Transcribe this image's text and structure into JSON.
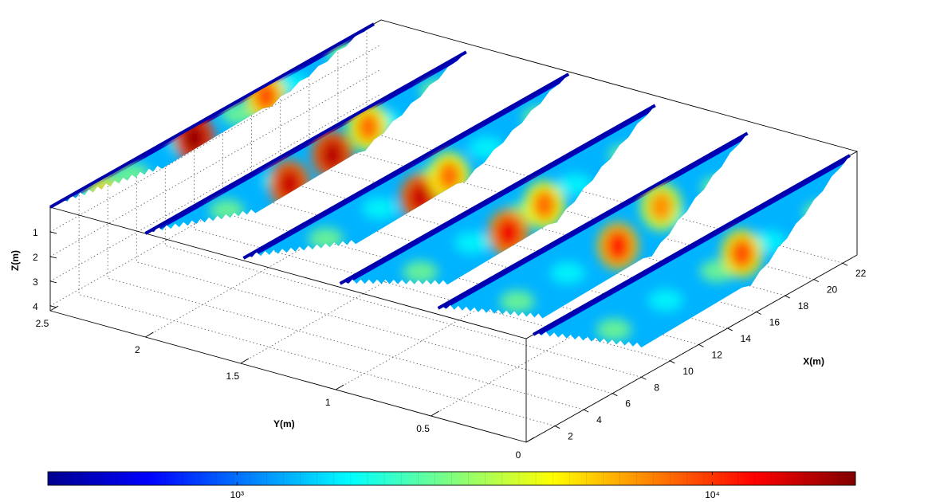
{
  "chart_data": {
    "type": "heatmap",
    "subtype": "3d-slice-plot",
    "xlabel": "X(m)",
    "ylabel": "Y(m)",
    "zlabel": "Z(m)",
    "xlim": [
      0,
      23
    ],
    "ylim": [
      0,
      2.5
    ],
    "zlim": [
      0,
      4.2
    ],
    "z_reversed": true,
    "x_ticks": [
      "2",
      "4",
      "6",
      "8",
      "10",
      "12",
      "14",
      "16",
      "18",
      "20",
      "22"
    ],
    "y_ticks": [
      "0",
      "0.5",
      "1",
      "1.5",
      "2",
      "2.5"
    ],
    "z_ticks": [
      "1",
      "2",
      "3",
      "4"
    ],
    "grid": true,
    "colormap": "jet",
    "colorbar": {
      "location": "bottom",
      "scale": "log",
      "range": [
        400,
        20000
      ],
      "ticks": [
        {
          "value": 1000,
          "label": "10³"
        },
        {
          "value": 10000,
          "label": "10⁴"
        }
      ]
    },
    "profiles": [
      {
        "y": 2.5,
        "x_start": 0.0,
        "x_end": 22.5,
        "max_depth_m": 1.0
      },
      {
        "y": 2.0,
        "x_start": 0.0,
        "x_end": 22.3,
        "max_depth_m": 1.7
      },
      {
        "y": 1.5,
        "x_start": 0.2,
        "x_end": 22.8,
        "max_depth_m": 2.0
      },
      {
        "y": 1.0,
        "x_start": 0.3,
        "x_end": 22.2,
        "max_depth_m": 2.5
      },
      {
        "y": 0.5,
        "x_start": 0.5,
        "x_end": 22.0,
        "max_depth_m": 2.8
      },
      {
        "y": 0.0,
        "x_start": 0.5,
        "x_end": 22.5,
        "max_depth_m": 3.0
      }
    ],
    "anomalies": [
      {
        "profile_y": 2.5,
        "x": 10.0,
        "z": 0.5,
        "value": 18000
      },
      {
        "profile_y": 2.5,
        "x": 15.0,
        "z": 0.45,
        "value": 9000
      },
      {
        "profile_y": 2.5,
        "x": 3.8,
        "z": 0.9,
        "value": 6000
      },
      {
        "profile_y": 2.0,
        "x": 10.0,
        "z": 1.3,
        "value": 15000
      },
      {
        "profile_y": 2.0,
        "x": 13.0,
        "z": 1.1,
        "value": 16000
      },
      {
        "profile_y": 2.0,
        "x": 15.5,
        "z": 0.8,
        "value": 8000
      },
      {
        "profile_y": 1.5,
        "x": 12.5,
        "z": 1.6,
        "value": 15000
      },
      {
        "profile_y": 1.5,
        "x": 14.5,
        "z": 1.4,
        "value": 8000
      },
      {
        "profile_y": 1.0,
        "x": 12.0,
        "z": 1.8,
        "value": 13000
      },
      {
        "profile_y": 1.0,
        "x": 14.5,
        "z": 1.5,
        "value": 8000
      },
      {
        "profile_y": 0.5,
        "x": 13.0,
        "z": 1.6,
        "value": 11000
      },
      {
        "profile_y": 0.5,
        "x": 16.0,
        "z": 1.0,
        "value": 7000
      },
      {
        "profile_y": 0.0,
        "x": 15.0,
        "z": 1.5,
        "value": 9000
      }
    ]
  }
}
